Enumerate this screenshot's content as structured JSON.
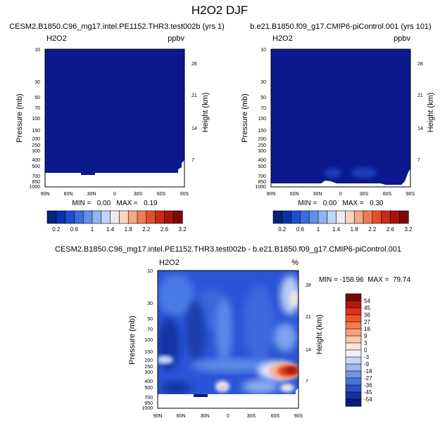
{
  "page_title": "H2O2 DJF",
  "colors": {
    "background": "#ffffff",
    "field_dark_blue": "#0a1a8c"
  },
  "chart_data": [
    {
      "type": "heatmap",
      "id": "panel-left",
      "title": "CESM2.B1850.C96_mg17.intel.PE1152.THR3.test002b (yrs 1)",
      "variable_label": "H2O2",
      "units_label": "ppbv",
      "ylabel": "Pressure (mb)",
      "y2label": "Height (km)",
      "xticks": [
        "90N",
        "60N",
        "30N",
        "0",
        "30S",
        "60S",
        "90S"
      ],
      "yticks": [
        "10",
        "30",
        "50",
        "70",
        "100",
        "150",
        "200",
        "250",
        "300",
        "400",
        "500",
        "700",
        "850",
        "1000"
      ],
      "y2ticks": [
        "28",
        "21",
        "14",
        "7"
      ],
      "stats": "MIN =   0.00   MAX =   0.19",
      "colorbar": {
        "orientation": "horizontal",
        "ticks": [
          "0.2",
          "0.6",
          "1",
          "1.4",
          "1.8",
          "2.2",
          "2.6",
          "3.2"
        ],
        "colors": [
          "#07217c",
          "#0a31aa",
          "#1a4fcc",
          "#3a6de0",
          "#6090ec",
          "#90b4f4",
          "#c0d6f8",
          "#ececf0",
          "#fbd4c0",
          "#f6a888",
          "#f07a58",
          "#e4502e",
          "#cc2a14",
          "#a81408",
          "#7e0a04"
        ]
      }
    },
    {
      "type": "heatmap",
      "id": "panel-right",
      "title": "b.e21.B1850.f09_g17.CMIP6-piControl.001 (yrs 101)",
      "variable_label": "H2O2",
      "units_label": "ppbv",
      "ylabel": "Pressure (mb)",
      "y2label": "Height (km)",
      "xticks": [
        "90N",
        "60N",
        "30N",
        "0",
        "30S",
        "60S",
        "90S"
      ],
      "yticks": [
        "10",
        "30",
        "50",
        "70",
        "100",
        "150",
        "200",
        "250",
        "300",
        "400",
        "500",
        "700",
        "850",
        "1000"
      ],
      "y2ticks": [
        "28",
        "21",
        "14",
        "7"
      ],
      "stats": "MIN =   0.00   MAX =   0.30",
      "colorbar": {
        "orientation": "horizontal",
        "ticks": [
          "0.2",
          "0.6",
          "1",
          "1.4",
          "1.8",
          "2.2",
          "2.6",
          "3.2"
        ],
        "colors": [
          "#07217c",
          "#0a31aa",
          "#1a4fcc",
          "#3a6de0",
          "#6090ec",
          "#90b4f4",
          "#c0d6f8",
          "#ececf0",
          "#fbd4c0",
          "#f6a888",
          "#f07a58",
          "#e4502e",
          "#cc2a14",
          "#a81408",
          "#7e0a04"
        ]
      }
    },
    {
      "type": "heatmap",
      "id": "panel-diff",
      "title": "CESM2.B1850.C96_mg17.intel.PE1152.THR3.test002b - b.e21.B1850.f09_g17.CMIP6-piControl.001",
      "variable_label": "H2O2",
      "units_label": "%",
      "ylabel": "Pressure (mb)",
      "y2label": "Height (km)",
      "xticks": [
        "90N",
        "60N",
        "30N",
        "0",
        "30S",
        "60S",
        "90S"
      ],
      "yticks": [
        "10",
        "30",
        "50",
        "70",
        "100",
        "150",
        "200",
        "250",
        "300",
        "400",
        "500",
        "700",
        "850",
        "1000"
      ],
      "y2ticks": [
        "28",
        "21",
        "14",
        "7"
      ],
      "stats": "MIN = -158.96  MAX =  79.74",
      "colorbar": {
        "orientation": "vertical",
        "ticks": [
          "54",
          "45",
          "36",
          "27",
          "18",
          "9",
          "3",
          "0",
          "-3",
          "-9",
          "-18",
          "-27",
          "-36",
          "-45",
          "-54"
        ],
        "colors": [
          "#7a0a06",
          "#b01a0c",
          "#dc3218",
          "#f0542c",
          "#f67c50",
          "#f8a478",
          "#f8c8a8",
          "#fbe6d8",
          "#eef0fb",
          "#c6d6f6",
          "#9cb8f0",
          "#7096e6",
          "#4a74d8",
          "#2a52c4",
          "#1634a0",
          "#0a1a7a"
        ]
      }
    }
  ]
}
